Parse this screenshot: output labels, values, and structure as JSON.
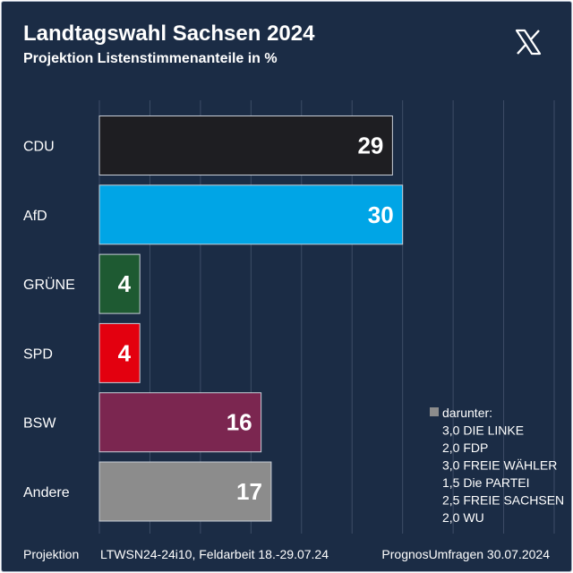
{
  "header": {
    "title": "Landtagswahl Sachsen 2024",
    "subtitle": "Projektion Listenstimmenanteile in %",
    "logo_icon": "x-logo-icon"
  },
  "colors": {
    "background": "#1b2c45",
    "grid": "#3d4d66",
    "text": "#ffffff"
  },
  "chart_data": {
    "type": "bar",
    "orientation": "horizontal",
    "title": "Landtagswahl Sachsen 2024",
    "subtitle": "Projektion Listenstimmenanteile in %",
    "categories": [
      "CDU",
      "AfD",
      "GRÜNE",
      "SPD",
      "BSW",
      "Andere"
    ],
    "values": [
      29,
      30,
      4,
      4,
      16,
      17
    ],
    "value_labels": [
      "29",
      "30",
      "4",
      "4",
      "16",
      "17"
    ],
    "colors": [
      "#1e1e22",
      "#00a5e6",
      "#1e5a32",
      "#e3000f",
      "#7b2650",
      "#8c8c8c"
    ],
    "xlim": [
      0,
      45
    ],
    "grid": true,
    "xlabel": "",
    "ylabel": "",
    "legend": {
      "title": "darunter:",
      "marker_color": "#8c8c8c",
      "items": [
        "3,0 DIE LINKE",
        "2,0 FDP",
        "3,0 FREIE WÄHLER",
        "1,5 Die PARTEI",
        "2,5 FREIE SACHSEN",
        "2,0 WU"
      ]
    }
  },
  "footer": {
    "left": "Projektion",
    "middle": "LTWSN24-24i10, Feldarbeit 18.-29.07.24",
    "right": "PrognosUmfragen 30.07.2024"
  }
}
